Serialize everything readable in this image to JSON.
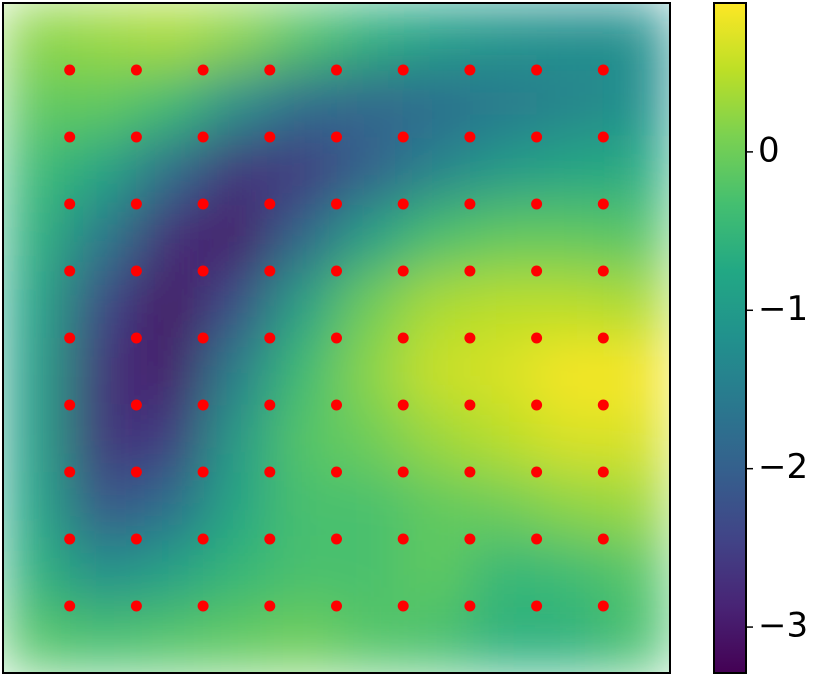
{
  "chart_data": {
    "type": "contour",
    "z": [
      [
        0.2,
        0.3,
        0.4,
        0.2,
        -0.2,
        -0.6,
        -0.9,
        -1.1,
        -1.2,
        -1.2
      ],
      [
        -0.1,
        -0.1,
        -0.4,
        -1.2,
        -1.8,
        -1.9,
        -1.8,
        -1.6,
        -1.4,
        -1.2
      ],
      [
        -0.4,
        -0.8,
        -1.8,
        -2.7,
        -2.6,
        -2.0,
        -1.4,
        -1.0,
        -0.8,
        -0.7
      ],
      [
        -0.6,
        -1.6,
        -2.8,
        -3.0,
        -1.9,
        -0.9,
        -0.3,
        -0.1,
        -0.1,
        -0.2
      ],
      [
        -0.8,
        -2.4,
        -3.1,
        -2.3,
        -0.9,
        0.0,
        0.4,
        0.5,
        0.5,
        0.4
      ],
      [
        -0.9,
        -2.7,
        -3.0,
        -1.5,
        -0.4,
        0.2,
        0.6,
        0.7,
        0.9,
        0.9
      ],
      [
        -0.9,
        -2.7,
        -2.6,
        -1.0,
        -0.2,
        0.0,
        0.3,
        0.5,
        0.7,
        0.7
      ],
      [
        -0.8,
        -2.2,
        -1.8,
        -0.8,
        -0.3,
        -0.3,
        -0.1,
        0.0,
        0.2,
        0.3
      ],
      [
        -0.6,
        -1.2,
        -0.9,
        -0.5,
        -0.3,
        -0.3,
        -0.1,
        -0.5,
        -0.4,
        -0.2
      ],
      [
        -0.2,
        -0.3,
        -0.2,
        -0.1,
        0.0,
        -0.2,
        -0.3,
        -0.6,
        -0.6,
        -0.3
      ]
    ],
    "xlim": [
      0,
      10
    ],
    "ylim": [
      0,
      10
    ],
    "points": {
      "x": [
        1,
        2,
        3,
        4,
        5,
        6,
        7,
        8,
        9
      ],
      "y": [
        1,
        2,
        3,
        4,
        5,
        6,
        7,
        8,
        9
      ],
      "color": "red"
    },
    "colormap": "viridis",
    "clim": [
      -3.29,
      0.94
    ],
    "cticks": [
      {
        "value": 0,
        "label": "0"
      },
      {
        "value": -1,
        "label": "−1"
      },
      {
        "value": -2,
        "label": "−2"
      },
      {
        "value": -3,
        "label": "−3"
      }
    ]
  }
}
